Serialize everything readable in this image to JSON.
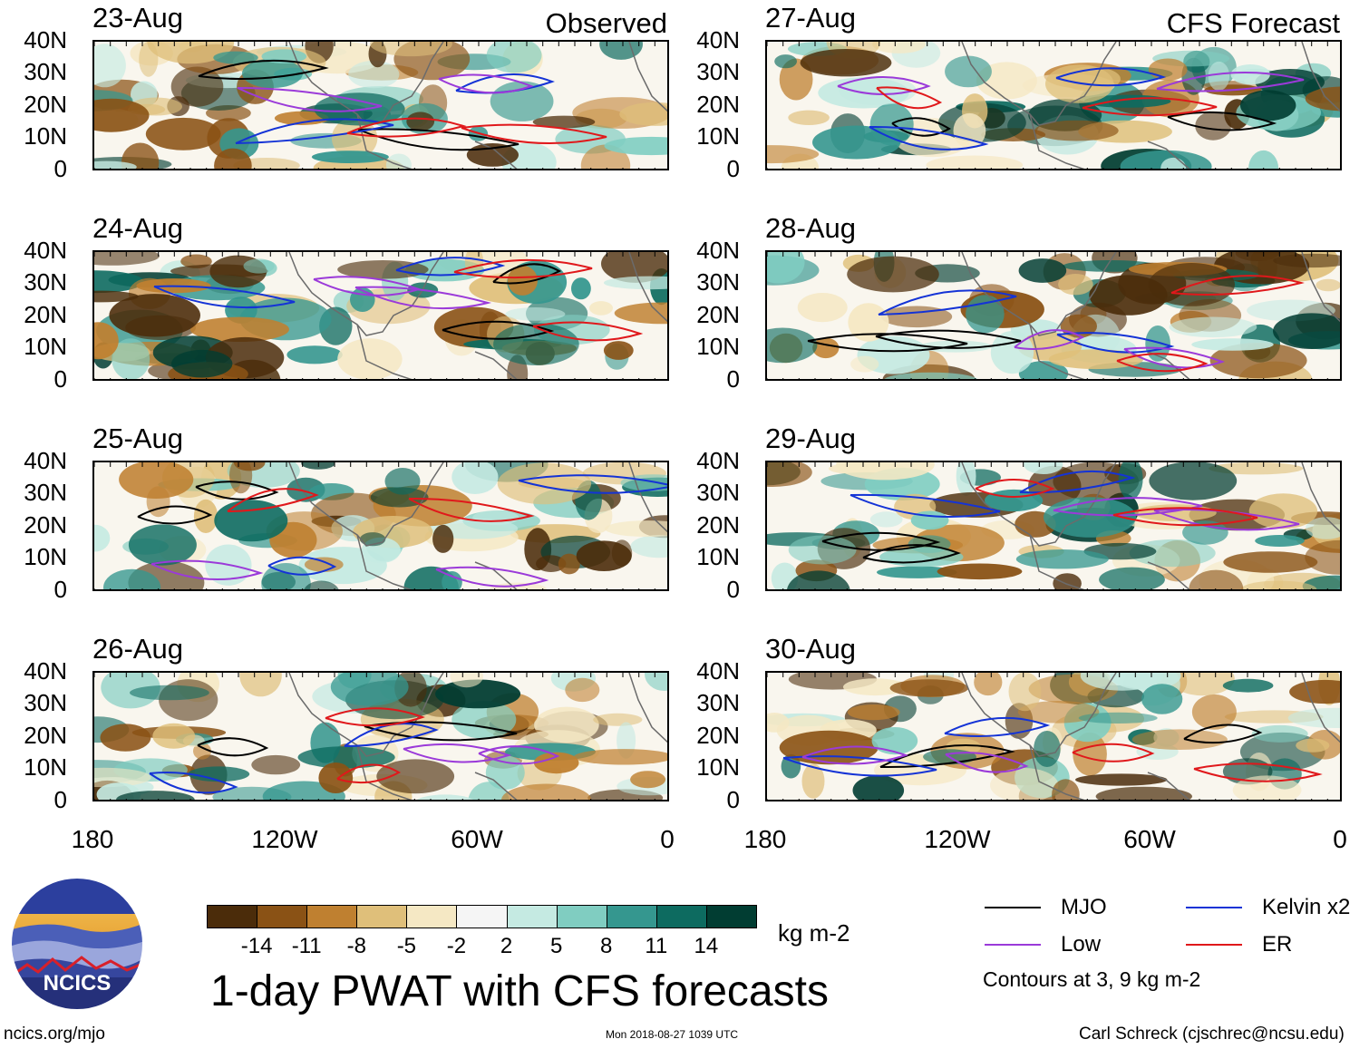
{
  "title": "1-day PWAT with CFS forecasts",
  "units": "kg m-2",
  "columns": {
    "left_label": "Observed",
    "right_label": "CFS Forecast"
  },
  "panels": [
    {
      "date": "23-Aug",
      "column": "left"
    },
    {
      "date": "24-Aug",
      "column": "left"
    },
    {
      "date": "25-Aug",
      "column": "left"
    },
    {
      "date": "26-Aug",
      "column": "left"
    },
    {
      "date": "27-Aug",
      "column": "right"
    },
    {
      "date": "28-Aug",
      "column": "right"
    },
    {
      "date": "29-Aug",
      "column": "right"
    },
    {
      "date": "30-Aug",
      "column": "right"
    }
  ],
  "lat_labels": [
    "40N",
    "30N",
    "20N",
    "10N",
    "0"
  ],
  "lon_labels": [
    "180",
    "120W",
    "60W",
    "0"
  ],
  "colorbar": {
    "colors": [
      "#4b2c0a",
      "#8a5215",
      "#bf8030",
      "#dfbf7a",
      "#f5e8c4",
      "#f5f5f5",
      "#c5eae2",
      "#80cdc1",
      "#35978f",
      "#0d6b60",
      "#013d32"
    ],
    "ticks": [
      "-14",
      "-11",
      "-8",
      "-5",
      "-2",
      "2",
      "5",
      "8",
      "11",
      "14"
    ]
  },
  "legend": {
    "items": [
      {
        "label": "MJO",
        "color": "#000000"
      },
      {
        "label": "Kelvin x2",
        "color": "#1433d6"
      },
      {
        "label": "Low",
        "color": "#9b3ad9"
      },
      {
        "label": "ER",
        "color": "#e0181b"
      }
    ],
    "note": "Contours at 3, 9 kg m-2"
  },
  "logo": {
    "text": "NCICS"
  },
  "footer": {
    "left": "ncics.org/mjo",
    "center": "Mon 2018-08-27 1039 UTC",
    "right": "Carl Schreck (cjschrec@ncsu.edu)"
  }
}
